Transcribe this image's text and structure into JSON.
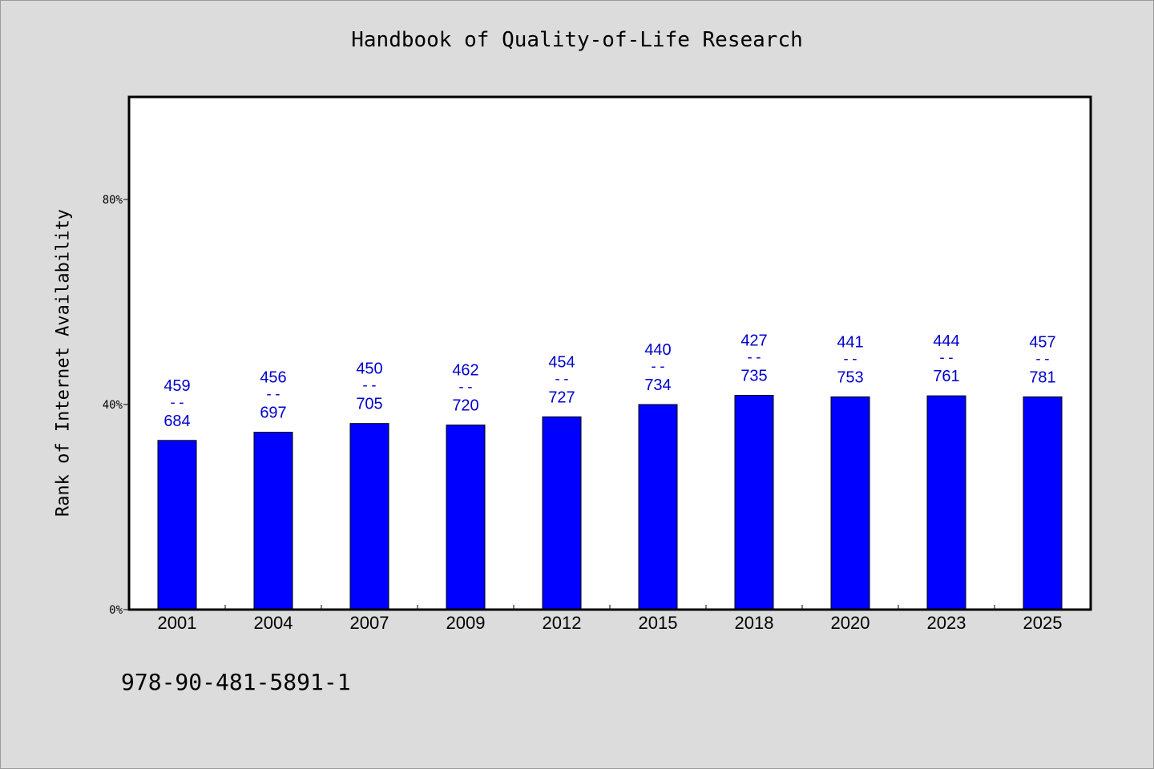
{
  "chart_data": {
    "type": "bar",
    "title": "Handbook of Quality-of-Life Research",
    "ylabel": "Rank of Internet Availability",
    "xlabel": "",
    "categories": [
      "2001",
      "2004",
      "2007",
      "2009",
      "2012",
      "2015",
      "2018",
      "2020",
      "2023",
      "2025"
    ],
    "values": [
      33,
      34.6,
      36.3,
      36,
      37.6,
      40,
      41.8,
      41.5,
      41.7,
      41.5
    ],
    "labels_top": [
      "459",
      "456",
      "450",
      "462",
      "454",
      "440",
      "427",
      "441",
      "444",
      "457"
    ],
    "labels_bottom": [
      "684",
      "697",
      "705",
      "720",
      "727",
      "734",
      "735",
      "753",
      "761",
      "781"
    ],
    "label_separator": "--",
    "ylim": [
      0,
      100
    ],
    "yticks": [
      0,
      40,
      80
    ],
    "ytick_labels": [
      "0%",
      "40%",
      "80%"
    ],
    "grid": false,
    "bar_color": "#0000ff",
    "label_color": "#0000cc"
  },
  "footer": {
    "isbn": "978-90-481-5891-1"
  }
}
